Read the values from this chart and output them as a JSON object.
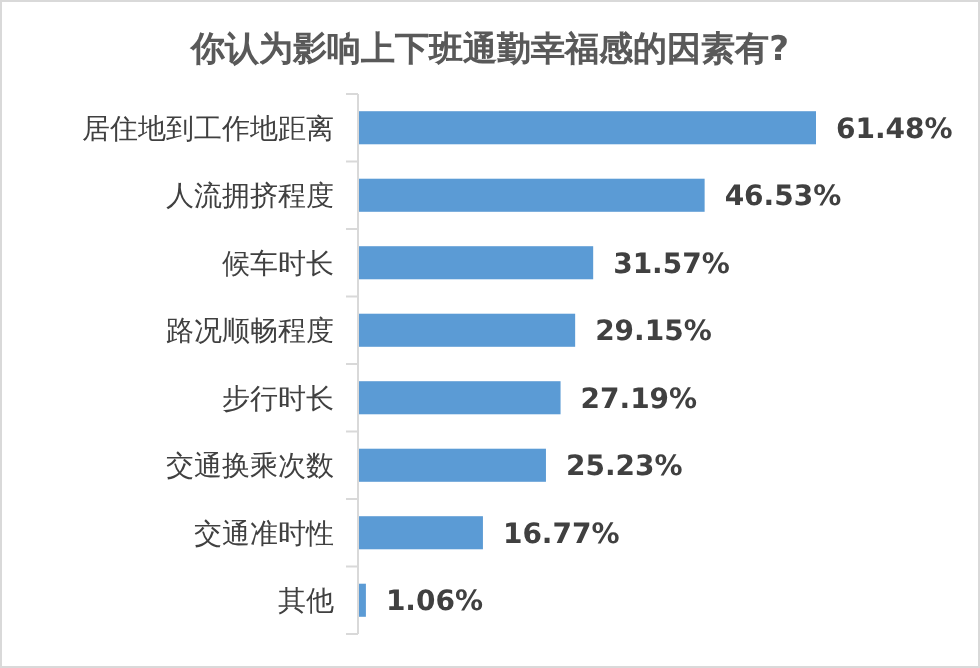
{
  "chart_data": {
    "type": "bar",
    "orientation": "horizontal",
    "title": "你认为影响上下班通勤幸福感的因素有?",
    "categories": [
      "居住地到工作地距离",
      "人流拥挤程度",
      "候车时长",
      "路况顺畅程度",
      "步行时长",
      "交通换乘次数",
      "交通准时性",
      "其他"
    ],
    "values": [
      61.48,
      46.53,
      31.57,
      29.15,
      27.19,
      25.23,
      16.77,
      1.06
    ],
    "value_labels": [
      "61.48%",
      "46.53%",
      "31.57%",
      "29.15%",
      "27.19%",
      "25.23%",
      "16.77%",
      "1.06%"
    ],
    "color": "#5b9bd5"
  }
}
